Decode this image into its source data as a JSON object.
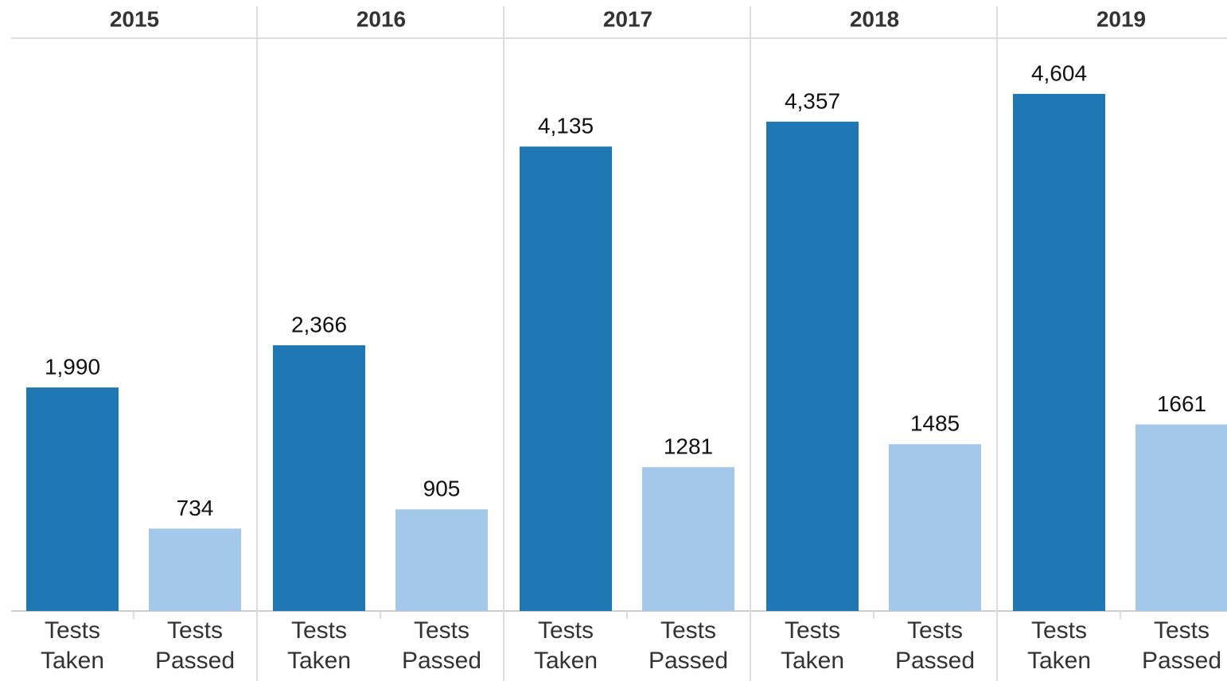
{
  "chart_data": {
    "type": "bar",
    "categories": [
      "2015",
      "2016",
      "2017",
      "2018",
      "2019"
    ],
    "series": [
      {
        "name": "Tests Taken",
        "color": "#1f77b4",
        "values": [
          1990,
          2366,
          4135,
          4357,
          4604
        ],
        "value_labels": [
          "1,990",
          "2,366",
          "4,135",
          "4,357",
          "4,604"
        ]
      },
      {
        "name": "Tests Passed",
        "color": "#a3c8ea",
        "values": [
          734,
          905,
          1281,
          1485,
          1661
        ]
      }
    ],
    "ylim": [
      0,
      5100
    ]
  }
}
